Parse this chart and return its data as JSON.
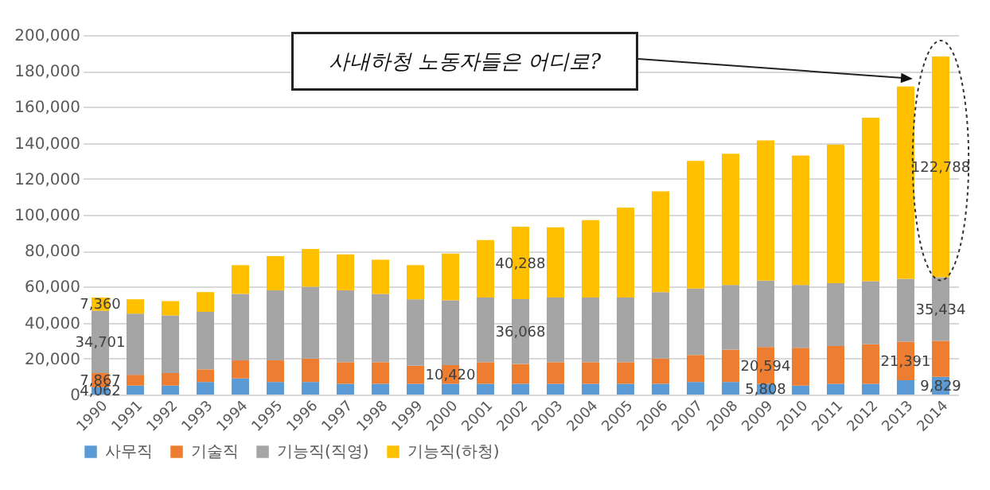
{
  "chart_data": {
    "type": "bar",
    "stacked": true,
    "categories": [
      "1990",
      "1991",
      "1992",
      "1993",
      "1994",
      "1995",
      "1996",
      "1997",
      "1998",
      "1999",
      "2000",
      "2001",
      "2002",
      "2003",
      "2004",
      "2005",
      "2006",
      "2007",
      "2008",
      "2009",
      "2010",
      "2011",
      "2012",
      "2013",
      "2014"
    ],
    "series": [
      {
        "name": "사무직",
        "color": "#5b9bd5",
        "values": [
          4062,
          5000,
          5000,
          7000,
          9000,
          7000,
          7000,
          6000,
          6000,
          6000,
          6000,
          6000,
          6000,
          6000,
          6000,
          6000,
          6000,
          7000,
          7000,
          5808,
          5000,
          6000,
          6000,
          8000,
          9829
        ],
        "value_labels": [
          "4,062",
          null,
          null,
          null,
          null,
          null,
          null,
          null,
          null,
          null,
          null,
          null,
          null,
          null,
          null,
          null,
          null,
          null,
          null,
          "5,808",
          null,
          null,
          null,
          null,
          "9,829"
        ]
      },
      {
        "name": "기술직",
        "color": "#ed7d31",
        "values": [
          7867,
          6000,
          7000,
          7000,
          10000,
          12000,
          13000,
          12000,
          12000,
          10000,
          10420,
          12000,
          11000,
          12000,
          12000,
          12000,
          14000,
          15000,
          18000,
          20594,
          21000,
          21000,
          22000,
          21391,
          20000
        ],
        "value_labels": [
          "7,867",
          null,
          null,
          null,
          null,
          null,
          null,
          null,
          null,
          null,
          "10,420",
          null,
          null,
          null,
          null,
          null,
          null,
          null,
          null,
          "20,594",
          null,
          null,
          null,
          "21,391",
          null
        ]
      },
      {
        "name": "기능직(직영)",
        "color": "#a5a5a5",
        "values": [
          34701,
          34000,
          32000,
          32000,
          37000,
          39000,
          40000,
          40000,
          38000,
          37000,
          36000,
          36000,
          36068,
          36000,
          36000,
          36000,
          37000,
          37000,
          36000,
          37000,
          35000,
          35000,
          35000,
          35000,
          35434
        ],
        "value_labels": [
          "34,701",
          null,
          null,
          null,
          null,
          null,
          null,
          null,
          null,
          null,
          null,
          null,
          "36,068",
          null,
          null,
          null,
          null,
          null,
          null,
          null,
          null,
          null,
          null,
          null,
          "35,434"
        ]
      },
      {
        "name": "기능직(하청)",
        "color": "#ffc000",
        "values": [
          7360,
          8000,
          8000,
          11000,
          16000,
          19000,
          21000,
          20000,
          19000,
          19000,
          26000,
          32000,
          40288,
          39000,
          43000,
          50000,
          56000,
          71000,
          73000,
          78000,
          72000,
          77000,
          91000,
          107000,
          122788
        ],
        "value_labels": [
          "7,360",
          null,
          null,
          null,
          null,
          null,
          null,
          null,
          null,
          null,
          null,
          null,
          "40,288",
          null,
          null,
          null,
          null,
          null,
          null,
          null,
          null,
          null,
          null,
          null,
          "122,788"
        ]
      }
    ],
    "ylim": [
      0,
      200000
    ],
    "yticks": [
      0,
      {
        "value": 20000,
        "label": "20,000"
      },
      {
        "value": 40000,
        "label": "40,000"
      },
      {
        "value": 60000,
        "label": "60,000"
      },
      {
        "value": 80000,
        "label": "80,000"
      },
      {
        "value": 100000,
        "label": "100,000"
      },
      {
        "value": 120000,
        "label": "120,000"
      },
      {
        "value": 140000,
        "label": "140,000"
      },
      {
        "value": 160000,
        "label": "160,000"
      },
      {
        "value": 180000,
        "label": "180,000"
      },
      {
        "value": 200000,
        "label": "200,000"
      }
    ],
    "grid": "y",
    "legend": "bottom",
    "annotations": [
      "사내하청 노동자들은 어디로?"
    ]
  }
}
